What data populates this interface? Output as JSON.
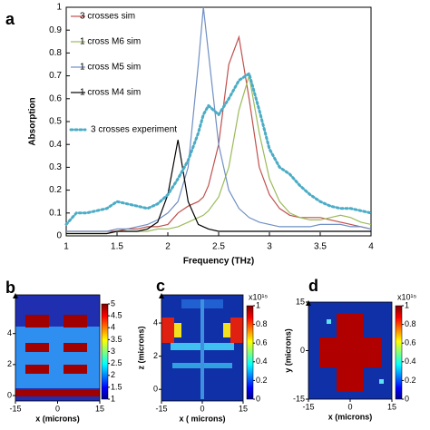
{
  "chart_data": [
    {
      "type": "line",
      "panel": "a",
      "xlabel": "Frequency (THz)",
      "ylabel": "Absorption",
      "xlim": [
        1,
        4
      ],
      "ylim": [
        0,
        1
      ],
      "xticks": [
        1,
        1.5,
        2,
        2.5,
        3,
        3.5,
        4
      ],
      "yticks": [
        0,
        0.1,
        0.2,
        0.3,
        0.4,
        0.5,
        0.6,
        0.7,
        0.8,
        0.9,
        1
      ],
      "x": [
        1,
        1.1,
        1.2,
        1.3,
        1.4,
        1.5,
        1.6,
        1.7,
        1.8,
        1.9,
        2,
        2.1,
        2.2,
        2.3,
        2.35,
        2.4,
        2.5,
        2.6,
        2.7,
        2.8,
        2.9,
        3,
        3.1,
        3.2,
        3.3,
        3.4,
        3.5,
        3.6,
        3.7,
        3.8,
        3.9,
        4
      ],
      "series": [
        {
          "name": "3 crosses sim",
          "color": "#c0504d",
          "style": "solid",
          "values": [
            0.02,
            0.02,
            0.02,
            0.02,
            0.02,
            0.02,
            0.03,
            0.03,
            0.04,
            0.04,
            0.05,
            0.1,
            0.13,
            0.15,
            0.17,
            0.22,
            0.4,
            0.75,
            0.87,
            0.6,
            0.3,
            0.18,
            0.12,
            0.09,
            0.08,
            0.08,
            0.08,
            0.07,
            0.06,
            0.05,
            0.04,
            0.03
          ]
        },
        {
          "name": "1 cross M6 sim",
          "color": "#9bbb59",
          "style": "solid",
          "values": [
            0.01,
            0.01,
            0.01,
            0.01,
            0.01,
            0.02,
            0.02,
            0.02,
            0.02,
            0.03,
            0.03,
            0.04,
            0.06,
            0.08,
            0.09,
            0.11,
            0.17,
            0.3,
            0.55,
            0.7,
            0.45,
            0.25,
            0.15,
            0.1,
            0.08,
            0.07,
            0.07,
            0.08,
            0.09,
            0.08,
            0.06,
            0.05
          ]
        },
        {
          "name": "1 cross M5 sim",
          "color": "#6f8fc4",
          "style": "solid",
          "values": [
            0.02,
            0.02,
            0.02,
            0.02,
            0.02,
            0.03,
            0.03,
            0.04,
            0.05,
            0.07,
            0.1,
            0.15,
            0.3,
            0.75,
            1,
            0.8,
            0.4,
            0.2,
            0.12,
            0.08,
            0.06,
            0.05,
            0.04,
            0.04,
            0.04,
            0.04,
            0.05,
            0.05,
            0.05,
            0.04,
            0.04,
            0.03
          ]
        },
        {
          "name": "1 cross M4 sim",
          "color": "#000000",
          "style": "solid",
          "values": [
            0.01,
            0.01,
            0.01,
            0.01,
            0.01,
            0.02,
            0.02,
            0.02,
            0.03,
            0.06,
            0.18,
            0.42,
            0.15,
            0.05,
            0.04,
            0.03,
            0.02,
            0.02,
            0.02,
            0.02,
            0.02,
            0.02,
            0.02,
            0.02,
            0.02,
            0.02,
            0.02,
            0.02,
            0.02,
            0.02,
            0.02,
            0.02
          ]
        },
        {
          "name": "3 crosses experiment",
          "color": "#4bacc6",
          "style": "dotted",
          "values": [
            0.05,
            0.1,
            0.1,
            0.11,
            0.12,
            0.15,
            0.14,
            0.13,
            0.12,
            0.14,
            0.18,
            0.25,
            0.33,
            0.45,
            0.53,
            0.57,
            0.53,
            0.6,
            0.68,
            0.71,
            0.55,
            0.38,
            0.3,
            0.27,
            0.22,
            0.18,
            0.15,
            0.13,
            0.12,
            0.12,
            0.11,
            0.1
          ]
        }
      ]
    },
    {
      "type": "heatmap",
      "panel": "b",
      "xlabel": "x (microns)",
      "xlim": [
        -15,
        15
      ],
      "ylim": [
        -0.35,
        6.5
      ],
      "xticks": [
        -15,
        0,
        15
      ],
      "yticks": [
        0,
        2,
        4
      ],
      "clim": [
        1,
        5
      ],
      "cticks": [
        1,
        1.5,
        2,
        2.5,
        3,
        3.5,
        4,
        4.5,
        5
      ]
    },
    {
      "type": "heatmap",
      "panel": "c",
      "xlabel": "x ( microns)",
      "ylabel": "z (microns)",
      "xlim": [
        -15,
        15
      ],
      "ylim": [
        -0.7,
        5.7
      ],
      "xticks": [
        -15,
        0,
        15
      ],
      "yticks": [
        0,
        2,
        4
      ],
      "clim": [
        0,
        1
      ],
      "cticks": [
        0,
        0.2,
        0.4,
        0.6,
        0.8,
        1
      ],
      "cscale": "x10¹⁵"
    },
    {
      "type": "heatmap",
      "panel": "d",
      "xlabel": "x (microns)",
      "ylabel": "y (microns)",
      "xlim": [
        -15,
        15
      ],
      "ylim": [
        -15,
        15
      ],
      "xticks": [
        -15,
        0,
        15
      ],
      "yticks": [
        -15,
        0,
        15
      ],
      "clim": [
        0,
        1
      ],
      "cticks": [
        0,
        0.2,
        0.4,
        0.6,
        0.8,
        1
      ],
      "cscale": "x10¹⁵"
    }
  ]
}
